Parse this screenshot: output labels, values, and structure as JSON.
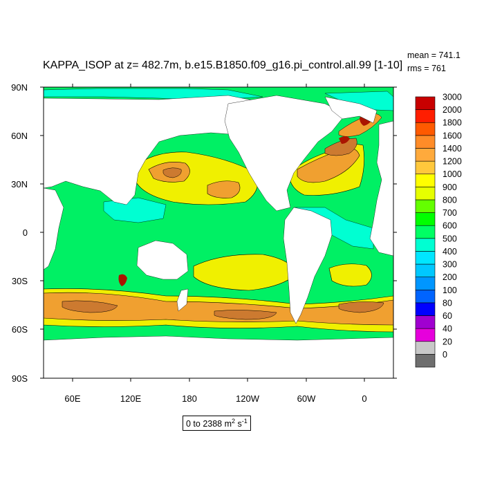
{
  "title": "KAPPA_ISOP at z= 482.7m, b.e15.B1850.f09_g16.pi_control.all.99 [1-10]",
  "stats": {
    "mean": "mean = 741.1",
    "rms": "rms = 761"
  },
  "range": {
    "text": "0 to 2388 m",
    "sup1": "2",
    "mid": " s",
    "sup2": "-1"
  },
  "lat_labels": [
    "90N",
    "60N",
    "30N",
    "0",
    "30S",
    "60S",
    "90S"
  ],
  "lon_labels": [
    "60E",
    "120E",
    "180",
    "120W",
    "60W",
    "0"
  ],
  "legend": {
    "labels": [
      "3000",
      "2000",
      "1800",
      "1600",
      "1400",
      "1200",
      "1000",
      "900",
      "800",
      "700",
      "600",
      "500",
      "400",
      "300",
      "200",
      "100",
      "80",
      "60",
      "40",
      "20",
      "0"
    ],
    "colors": [
      "#6e6e6e",
      "#c8c8c8",
      "#e600dc",
      "#a000d0",
      "#0000ff",
      "#0064ff",
      "#0096ff",
      "#00c8ff",
      "#00e6ff",
      "#00ffd2",
      "#00ff64",
      "#00ff00",
      "#64ff00",
      "#e6ff00",
      "#ffff00",
      "#ffc83c",
      "#ffaa3c",
      "#ff8c28",
      "#ff5a00",
      "#ff1e00",
      "#c80000"
    ]
  },
  "colors": {
    "ocean": "#00f064",
    "land": "#ffffff",
    "yellow": "#f0f000",
    "orange": "#f0a030",
    "dark": "#cc7a30",
    "red": "#aa1500",
    "cyan": "#00ffd2"
  }
}
